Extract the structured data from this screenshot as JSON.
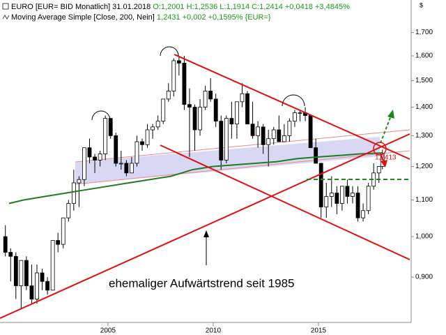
{
  "chart_data": {
    "type": "candlestick",
    "header": {
      "instrument": "EURO [EUR= BID Monatlich] 31.01.2018",
      "quote": "O:1,2001 H:1,2536 L:1,1914 C:1,2414 +0,0418 +3,4845%"
    },
    "ma_legend": {
      "label": "Moving Average Simple [Close, 200, Nein]",
      "value": "1,2431 +0,002 +0,1595% {EUR=}"
    },
    "currency_symbol": "$",
    "annotation": "ehemaliger Aufwärtstrend seit 1985",
    "level_label": "1,2413",
    "log_scale": true,
    "xlim": [
      1999.87,
      2019.34
    ],
    "xticks": [
      2005,
      2010,
      2015
    ],
    "ylim": [
      0.8,
      1.85
    ],
    "yticks": [
      {
        "value": 0.9,
        "label": "0,900"
      },
      {
        "value": 1.0,
        "label": "1,000"
      },
      {
        "value": 1.1,
        "label": "1,100"
      },
      {
        "value": 1.2,
        "label": "1,200"
      },
      {
        "value": 1.3,
        "label": "1,300"
      },
      {
        "value": 1.4,
        "label": "1,400"
      },
      {
        "value": 1.5,
        "label": "1,500"
      },
      {
        "value": 1.6,
        "label": "1,600"
      },
      {
        "value": 1.7,
        "label": "1,700"
      }
    ],
    "up_color": "#ffffff",
    "down_color": "#000000",
    "wick_color": "#000000",
    "candles": {
      "x": [
        2000.125,
        2000.375,
        2000.625,
        2000.875,
        2001.125,
        2001.375,
        2001.625,
        2001.875,
        2002.125,
        2002.375,
        2002.625,
        2002.875,
        2003.125,
        2003.375,
        2003.625,
        2003.875,
        2004.125,
        2004.375,
        2004.625,
        2004.875,
        2005.125,
        2005.375,
        2005.625,
        2005.875,
        2006.125,
        2006.375,
        2006.625,
        2006.875,
        2007.125,
        2007.375,
        2007.625,
        2007.875,
        2008.125,
        2008.375,
        2008.625,
        2008.875,
        2009.125,
        2009.375,
        2009.625,
        2009.875,
        2010.125,
        2010.375,
        2010.625,
        2010.875,
        2011.125,
        2011.375,
        2011.625,
        2011.875,
        2012.125,
        2012.375,
        2012.625,
        2012.875,
        2013.125,
        2013.375,
        2013.625,
        2013.875,
        2014.125,
        2014.375,
        2014.625,
        2014.875,
        2015.125,
        2015.375,
        2015.625,
        2015.875,
        2016.125,
        2016.375,
        2016.625,
        2016.875,
        2017.125,
        2017.375,
        2017.625,
        2017.875,
        2018.04
      ],
      "open": [
        1.0,
        0.96,
        0.95,
        0.88,
        0.94,
        0.88,
        0.85,
        0.91,
        0.89,
        0.87,
        0.99,
        0.98,
        1.05,
        1.09,
        1.15,
        1.16,
        1.26,
        1.23,
        1.22,
        1.24,
        1.36,
        1.3,
        1.21,
        1.21,
        1.18,
        1.21,
        1.28,
        1.27,
        1.32,
        1.33,
        1.35,
        1.43,
        1.46,
        1.58,
        1.57,
        1.41,
        1.4,
        1.32,
        1.4,
        1.46,
        1.43,
        1.35,
        1.22,
        1.36,
        1.34,
        1.42,
        1.45,
        1.34,
        1.3,
        1.33,
        1.27,
        1.29,
        1.32,
        1.28,
        1.3,
        1.35,
        1.38,
        1.38,
        1.37,
        1.26,
        1.21,
        1.08,
        1.11,
        1.12,
        1.09,
        1.14,
        1.11,
        1.12,
        1.05,
        1.07,
        1.14,
        1.18,
        1.2001
      ],
      "high": [
        1.03,
        0.97,
        0.96,
        0.94,
        0.95,
        0.93,
        0.93,
        0.92,
        0.9,
        0.99,
        1.01,
        1.05,
        1.1,
        1.19,
        1.17,
        1.26,
        1.29,
        1.24,
        1.25,
        1.37,
        1.36,
        1.31,
        1.25,
        1.22,
        1.23,
        1.3,
        1.29,
        1.34,
        1.34,
        1.37,
        1.43,
        1.49,
        1.59,
        1.6,
        1.6,
        1.47,
        1.41,
        1.43,
        1.48,
        1.51,
        1.45,
        1.37,
        1.37,
        1.42,
        1.42,
        1.49,
        1.46,
        1.42,
        1.35,
        1.34,
        1.32,
        1.33,
        1.37,
        1.34,
        1.36,
        1.39,
        1.39,
        1.4,
        1.37,
        1.29,
        1.21,
        1.15,
        1.17,
        1.14,
        1.14,
        1.16,
        1.14,
        1.14,
        1.09,
        1.15,
        1.21,
        1.2,
        1.2536
      ],
      "low": [
        0.95,
        0.89,
        0.85,
        0.83,
        0.87,
        0.84,
        0.84,
        0.87,
        0.86,
        0.87,
        0.96,
        0.97,
        1.04,
        1.07,
        1.08,
        1.14,
        1.21,
        1.18,
        1.2,
        1.22,
        1.29,
        1.2,
        1.19,
        1.17,
        1.18,
        1.2,
        1.25,
        1.26,
        1.29,
        1.32,
        1.34,
        1.42,
        1.44,
        1.52,
        1.39,
        1.23,
        1.25,
        1.3,
        1.39,
        1.42,
        1.33,
        1.19,
        1.21,
        1.29,
        1.29,
        1.4,
        1.34,
        1.29,
        1.26,
        1.24,
        1.2,
        1.27,
        1.28,
        1.28,
        1.28,
        1.33,
        1.35,
        1.35,
        1.26,
        1.21,
        1.05,
        1.05,
        1.08,
        1.06,
        1.07,
        1.09,
        1.09,
        1.04,
        1.04,
        1.06,
        1.13,
        1.15,
        1.1914
      ],
      "close": [
        0.96,
        0.95,
        0.88,
        0.94,
        0.88,
        0.85,
        0.91,
        0.89,
        0.87,
        0.99,
        0.98,
        1.05,
        1.09,
        1.15,
        1.16,
        1.26,
        1.23,
        1.22,
        1.24,
        1.36,
        1.3,
        1.21,
        1.21,
        1.18,
        1.21,
        1.28,
        1.27,
        1.32,
        1.33,
        1.35,
        1.43,
        1.46,
        1.58,
        1.57,
        1.41,
        1.4,
        1.32,
        1.4,
        1.46,
        1.43,
        1.35,
        1.22,
        1.36,
        1.34,
        1.42,
        1.45,
        1.34,
        1.3,
        1.33,
        1.27,
        1.29,
        1.32,
        1.28,
        1.3,
        1.35,
        1.38,
        1.38,
        1.37,
        1.26,
        1.21,
        1.08,
        1.11,
        1.12,
        1.09,
        1.14,
        1.11,
        1.12,
        1.05,
        1.07,
        1.14,
        1.18,
        1.2,
        1.2414
      ]
    },
    "moving_average": {
      "color": "#1e7d1e",
      "x": [
        2000.3,
        2001,
        2002,
        2003,
        2004,
        2005,
        2006,
        2007,
        2008,
        2009,
        2010,
        2011,
        2012,
        2013,
        2014,
        2015,
        2016,
        2017,
        2018.04
      ],
      "values": [
        1.09,
        1.1,
        1.11,
        1.12,
        1.13,
        1.14,
        1.15,
        1.16,
        1.17,
        1.19,
        1.2,
        1.205,
        1.21,
        1.215,
        1.225,
        1.23,
        1.235,
        1.24,
        1.2431
      ]
    }
  }
}
